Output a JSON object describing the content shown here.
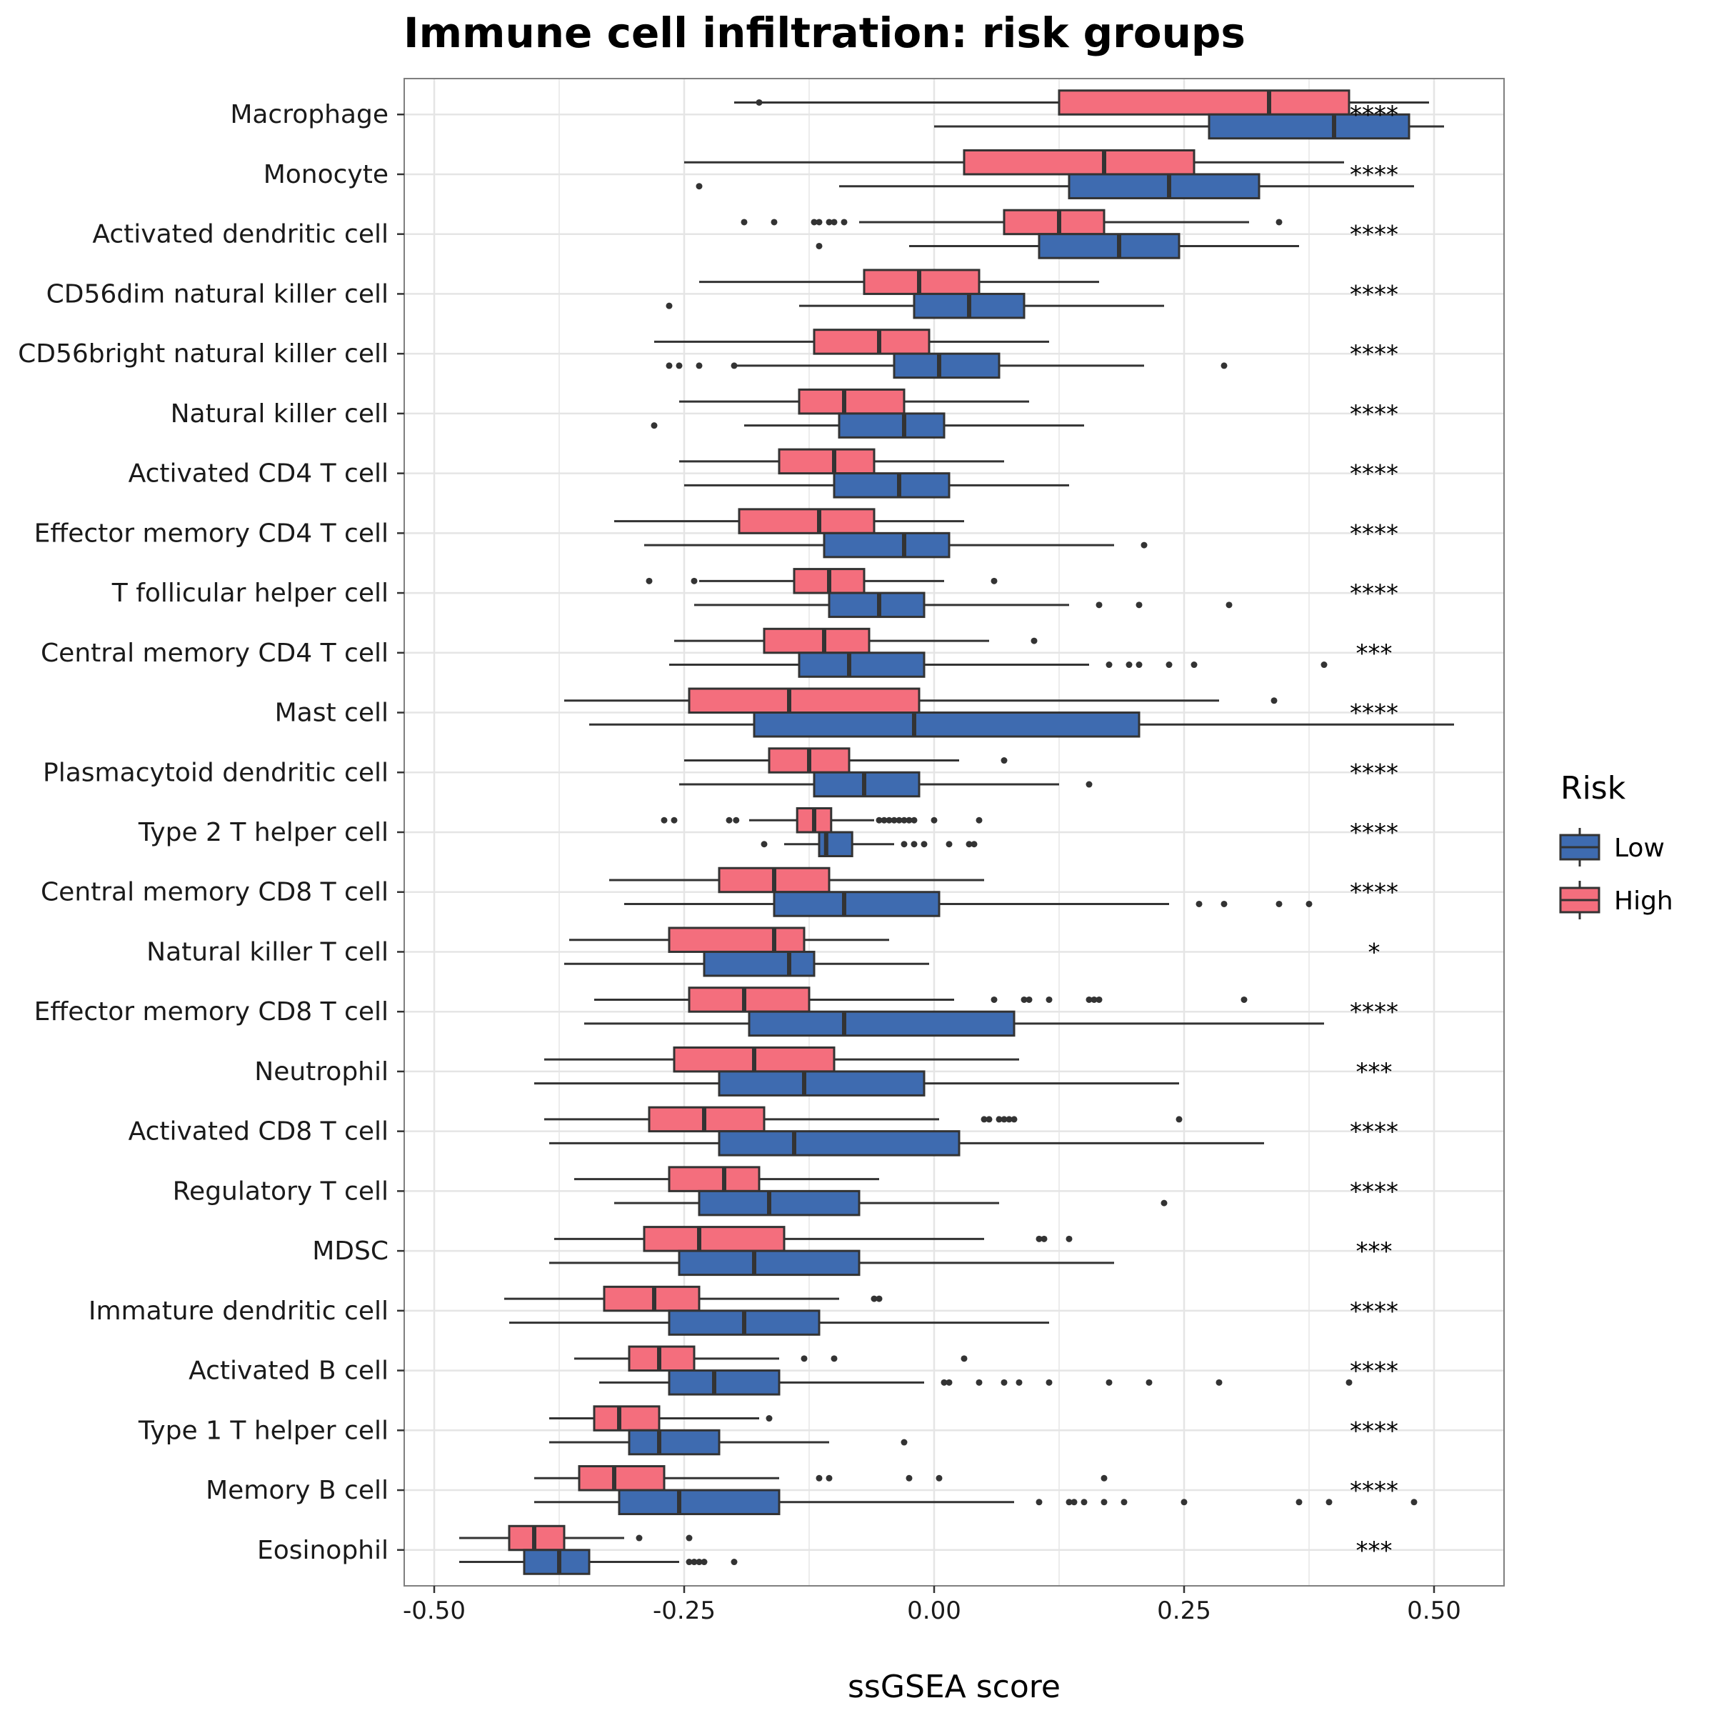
{
  "chart_data": {
    "type": "boxplot",
    "orientation": "horizontal",
    "title": "Immune cell infiltration: risk groups",
    "xlabel": "ssGSEA score",
    "ylabel": "",
    "xlim": [
      -0.53,
      0.57
    ],
    "x_ticks": [
      -0.5,
      -0.25,
      0.0,
      0.25,
      0.5
    ],
    "x_tick_labels": [
      "-0.50",
      "-0.25",
      "0.00",
      "0.25",
      "0.50"
    ],
    "grid": true,
    "legend": {
      "title": "Risk",
      "placement": "right",
      "entries": [
        {
          "name": "Low",
          "color": "#3E6BB0"
        },
        {
          "name": "High",
          "color": "#F46E7D"
        }
      ]
    },
    "colors": {
      "Low": "#3E6BB0",
      "High": "#F46E7D",
      "outline": "#333333",
      "grid": "#E5E5E5",
      "panel_border": "#7F7F7F"
    },
    "categories": [
      {
        "name": "Macrophage",
        "sig": "****",
        "High": {
          "whislo": -0.2,
          "q1": 0.125,
          "med": 0.335,
          "q3": 0.415,
          "whishi": 0.495,
          "fliers": [
            -0.175
          ]
        },
        "Low": {
          "whislo": 0.0,
          "q1": 0.275,
          "med": 0.4,
          "q3": 0.475,
          "whishi": 0.51,
          "fliers": []
        }
      },
      {
        "name": "Monocyte",
        "sig": "****",
        "High": {
          "whislo": -0.25,
          "q1": 0.03,
          "med": 0.17,
          "q3": 0.26,
          "whishi": 0.41,
          "fliers": []
        },
        "Low": {
          "whislo": -0.095,
          "q1": 0.135,
          "med": 0.235,
          "q3": 0.325,
          "whishi": 0.48,
          "fliers": [
            -0.235
          ]
        }
      },
      {
        "name": "Activated dendritic cell",
        "sig": "****",
        "High": {
          "whislo": -0.075,
          "q1": 0.07,
          "med": 0.125,
          "q3": 0.17,
          "whishi": 0.315,
          "fliers": [
            -0.19,
            -0.16,
            -0.12,
            -0.115,
            -0.105,
            -0.1,
            -0.09,
            0.345
          ]
        },
        "Low": {
          "whislo": -0.025,
          "q1": 0.105,
          "med": 0.185,
          "q3": 0.245,
          "whishi": 0.365,
          "fliers": [
            -0.115
          ]
        }
      },
      {
        "name": "CD56dim natural killer cell",
        "sig": "****",
        "High": {
          "whislo": -0.235,
          "q1": -0.07,
          "med": -0.015,
          "q3": 0.045,
          "whishi": 0.165,
          "fliers": []
        },
        "Low": {
          "whislo": -0.135,
          "q1": -0.02,
          "med": 0.035,
          "q3": 0.09,
          "whishi": 0.23,
          "fliers": [
            -0.265
          ]
        }
      },
      {
        "name": "CD56bright natural killer cell",
        "sig": "****",
        "High": {
          "whislo": -0.28,
          "q1": -0.12,
          "med": -0.055,
          "q3": -0.005,
          "whishi": 0.115,
          "fliers": []
        },
        "Low": {
          "whislo": -0.2,
          "q1": -0.04,
          "med": 0.005,
          "q3": 0.065,
          "whishi": 0.21,
          "fliers": [
            -0.265,
            -0.255,
            -0.235,
            -0.2,
            0.29
          ]
        }
      },
      {
        "name": "Natural killer cell",
        "sig": "****",
        "High": {
          "whislo": -0.255,
          "q1": -0.135,
          "med": -0.09,
          "q3": -0.03,
          "whishi": 0.095,
          "fliers": []
        },
        "Low": {
          "whislo": -0.19,
          "q1": -0.095,
          "med": -0.03,
          "q3": 0.01,
          "whishi": 0.15,
          "fliers": [
            -0.28
          ]
        }
      },
      {
        "name": "Activated CD4 T cell",
        "sig": "****",
        "High": {
          "whislo": -0.255,
          "q1": -0.155,
          "med": -0.1,
          "q3": -0.06,
          "whishi": 0.07,
          "fliers": []
        },
        "Low": {
          "whislo": -0.25,
          "q1": -0.1,
          "med": -0.035,
          "q3": 0.015,
          "whishi": 0.135,
          "fliers": []
        }
      },
      {
        "name": "Effector memory CD4 T cell",
        "sig": "****",
        "High": {
          "whislo": -0.32,
          "q1": -0.195,
          "med": -0.115,
          "q3": -0.06,
          "whishi": 0.03,
          "fliers": []
        },
        "Low": {
          "whislo": -0.29,
          "q1": -0.11,
          "med": -0.03,
          "q3": 0.015,
          "whishi": 0.18,
          "fliers": [
            0.21
          ]
        }
      },
      {
        "name": "T follicular helper cell",
        "sig": "****",
        "High": {
          "whislo": -0.235,
          "q1": -0.14,
          "med": -0.105,
          "q3": -0.07,
          "whishi": 0.01,
          "fliers": [
            -0.285,
            -0.24,
            0.06
          ]
        },
        "Low": {
          "whislo": -0.24,
          "q1": -0.105,
          "med": -0.055,
          "q3": -0.01,
          "whishi": 0.135,
          "fliers": [
            0.165,
            0.205,
            0.295
          ]
        }
      },
      {
        "name": "Central memory CD4 T cell",
        "sig": "***",
        "High": {
          "whislo": -0.26,
          "q1": -0.17,
          "med": -0.11,
          "q3": -0.065,
          "whishi": 0.055,
          "fliers": [
            0.1
          ]
        },
        "Low": {
          "whislo": -0.265,
          "q1": -0.135,
          "med": -0.085,
          "q3": -0.01,
          "whishi": 0.155,
          "fliers": [
            0.175,
            0.195,
            0.205,
            0.235,
            0.26,
            0.39
          ]
        }
      },
      {
        "name": "Mast cell",
        "sig": "****",
        "High": {
          "whislo": -0.37,
          "q1": -0.245,
          "med": -0.145,
          "q3": -0.015,
          "whishi": 0.285,
          "fliers": [
            0.34
          ]
        },
        "Low": {
          "whislo": -0.345,
          "q1": -0.18,
          "med": -0.02,
          "q3": 0.205,
          "whishi": 0.52,
          "fliers": []
        }
      },
      {
        "name": "Plasmacytoid dendritic cell",
        "sig": "****",
        "High": {
          "whislo": -0.25,
          "q1": -0.165,
          "med": -0.125,
          "q3": -0.085,
          "whishi": 0.025,
          "fliers": [
            0.07
          ]
        },
        "Low": {
          "whislo": -0.255,
          "q1": -0.12,
          "med": -0.07,
          "q3": -0.015,
          "whishi": 0.125,
          "fliers": [
            0.155
          ]
        }
      },
      {
        "name": "Type 2 T helper cell",
        "sig": "****",
        "High": {
          "whislo": -0.185,
          "q1": -0.137,
          "med": -0.12,
          "q3": -0.103,
          "whishi": -0.06,
          "fliers": [
            -0.27,
            -0.26,
            -0.205,
            -0.198,
            -0.055,
            -0.05,
            -0.045,
            -0.04,
            -0.035,
            -0.03,
            -0.025,
            -0.02,
            0.0,
            0.045
          ]
        },
        "Low": {
          "whislo": -0.15,
          "q1": -0.115,
          "med": -0.108,
          "q3": -0.082,
          "whishi": -0.04,
          "fliers": [
            -0.17,
            -0.03,
            -0.02,
            -0.01,
            0.015,
            0.035,
            0.04
          ]
        }
      },
      {
        "name": "Central memory CD8 T cell",
        "sig": "****",
        "High": {
          "whislo": -0.325,
          "q1": -0.215,
          "med": -0.16,
          "q3": -0.105,
          "whishi": 0.05,
          "fliers": []
        },
        "Low": {
          "whislo": -0.31,
          "q1": -0.16,
          "med": -0.09,
          "q3": 0.005,
          "whishi": 0.235,
          "fliers": [
            0.265,
            0.29,
            0.345,
            0.375
          ]
        }
      },
      {
        "name": "Natural killer T cell",
        "sig": "*",
        "High": {
          "whislo": -0.365,
          "q1": -0.265,
          "med": -0.16,
          "q3": -0.13,
          "whishi": -0.045,
          "fliers": []
        },
        "Low": {
          "whislo": -0.37,
          "q1": -0.23,
          "med": -0.145,
          "q3": -0.12,
          "whishi": -0.005,
          "fliers": []
        }
      },
      {
        "name": "Effector memory CD8 T cell",
        "sig": "****",
        "High": {
          "whislo": -0.34,
          "q1": -0.245,
          "med": -0.19,
          "q3": -0.125,
          "whishi": 0.02,
          "fliers": [
            0.06,
            0.09,
            0.095,
            0.115,
            0.155,
            0.16,
            0.165,
            0.31
          ]
        },
        "Low": {
          "whislo": -0.35,
          "q1": -0.185,
          "med": -0.09,
          "q3": 0.08,
          "whishi": 0.39,
          "fliers": []
        }
      },
      {
        "name": "Neutrophil",
        "sig": "***",
        "High": {
          "whislo": -0.39,
          "q1": -0.26,
          "med": -0.18,
          "q3": -0.1,
          "whishi": 0.085,
          "fliers": []
        },
        "Low": {
          "whislo": -0.4,
          "q1": -0.215,
          "med": -0.13,
          "q3": -0.01,
          "whishi": 0.245,
          "fliers": []
        }
      },
      {
        "name": "Activated CD8 T cell",
        "sig": "****",
        "High": {
          "whislo": -0.39,
          "q1": -0.285,
          "med": -0.23,
          "q3": -0.17,
          "whishi": 0.005,
          "fliers": [
            0.05,
            0.055,
            0.065,
            0.07,
            0.075,
            0.08,
            0.245
          ]
        },
        "Low": {
          "whislo": -0.385,
          "q1": -0.215,
          "med": -0.14,
          "q3": 0.025,
          "whishi": 0.33,
          "fliers": []
        }
      },
      {
        "name": "Regulatory T cell",
        "sig": "****",
        "High": {
          "whislo": -0.36,
          "q1": -0.265,
          "med": -0.21,
          "q3": -0.175,
          "whishi": -0.055,
          "fliers": []
        },
        "Low": {
          "whislo": -0.32,
          "q1": -0.235,
          "med": -0.165,
          "q3": -0.075,
          "whishi": 0.065,
          "fliers": [
            0.23
          ]
        }
      },
      {
        "name": "MDSC",
        "sig": "***",
        "High": {
          "whislo": -0.38,
          "q1": -0.29,
          "med": -0.235,
          "q3": -0.15,
          "whishi": 0.05,
          "fliers": [
            0.105,
            0.11,
            0.135
          ]
        },
        "Low": {
          "whislo": -0.385,
          "q1": -0.255,
          "med": -0.18,
          "q3": -0.075,
          "whishi": 0.18,
          "fliers": []
        }
      },
      {
        "name": "Immature dendritic cell",
        "sig": "****",
        "High": {
          "whislo": -0.43,
          "q1": -0.33,
          "med": -0.28,
          "q3": -0.235,
          "whishi": -0.095,
          "fliers": [
            -0.06,
            -0.055
          ]
        },
        "Low": {
          "whislo": -0.425,
          "q1": -0.265,
          "med": -0.19,
          "q3": -0.115,
          "whishi": 0.115,
          "fliers": []
        }
      },
      {
        "name": "Activated B cell",
        "sig": "****",
        "High": {
          "whislo": -0.36,
          "q1": -0.305,
          "med": -0.275,
          "q3": -0.24,
          "whishi": -0.155,
          "fliers": [
            -0.13,
            -0.1,
            0.03
          ]
        },
        "Low": {
          "whislo": -0.335,
          "q1": -0.265,
          "med": -0.22,
          "q3": -0.155,
          "whishi": -0.01,
          "fliers": [
            0.01,
            0.015,
            0.045,
            0.07,
            0.085,
            0.115,
            0.175,
            0.215,
            0.285,
            0.415
          ]
        }
      },
      {
        "name": "Type 1 T helper cell",
        "sig": "****",
        "High": {
          "whislo": -0.385,
          "q1": -0.34,
          "med": -0.315,
          "q3": -0.275,
          "whishi": -0.175,
          "fliers": [
            -0.165
          ]
        },
        "Low": {
          "whislo": -0.385,
          "q1": -0.305,
          "med": -0.275,
          "q3": -0.215,
          "whishi": -0.105,
          "fliers": [
            -0.03
          ]
        }
      },
      {
        "name": "Memory B cell",
        "sig": "****",
        "High": {
          "whislo": -0.4,
          "q1": -0.355,
          "med": -0.32,
          "q3": -0.27,
          "whishi": -0.155,
          "fliers": [
            -0.115,
            -0.105,
            -0.025,
            0.005,
            0.17
          ]
        },
        "Low": {
          "whislo": -0.4,
          "q1": -0.315,
          "med": -0.255,
          "q3": -0.155,
          "whishi": 0.08,
          "fliers": [
            0.105,
            0.135,
            0.14,
            0.15,
            0.17,
            0.19,
            0.25,
            0.365,
            0.395,
            0.48
          ]
        }
      },
      {
        "name": "Eosinophil",
        "sig": "***",
        "High": {
          "whislo": -0.475,
          "q1": -0.425,
          "med": -0.4,
          "q3": -0.37,
          "whishi": -0.31,
          "fliers": [
            -0.295,
            -0.245
          ]
        },
        "Low": {
          "whislo": -0.475,
          "q1": -0.41,
          "med": -0.375,
          "q3": -0.345,
          "whishi": -0.255,
          "fliers": [
            -0.245,
            -0.24,
            -0.235,
            -0.23,
            -0.2
          ]
        }
      }
    ]
  }
}
